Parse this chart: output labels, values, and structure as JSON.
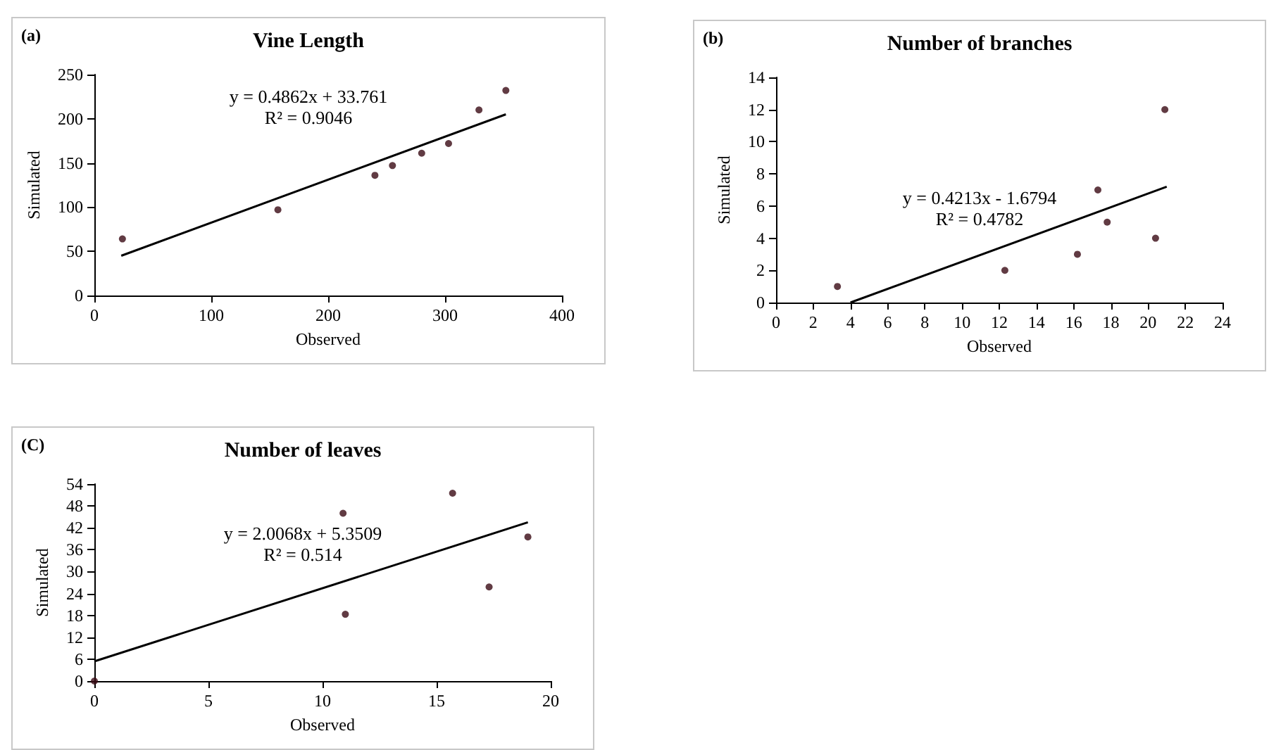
{
  "chart_data": [
    {
      "type": "scatter",
      "title": "Vine Length",
      "xlabel": "Observed",
      "ylabel": "Simulated",
      "annotations": [
        "(a)",
        "y = 0.4862x + 33.761",
        "R² = 0.9046"
      ],
      "xlim": [
        0,
        400
      ],
      "xticks": [
        0,
        100,
        200,
        300,
        400
      ],
      "ylim": [
        0,
        250
      ],
      "yticks": [
        0,
        50,
        100,
        150,
        200,
        250
      ],
      "grid": false,
      "series": [
        {
          "marker": "circle",
          "color": "#3a0a14",
          "x": [
            24,
            157,
            240,
            255,
            280,
            303,
            329,
            352
          ],
          "values": [
            64,
            97,
            136,
            147,
            161,
            172,
            210,
            232
          ]
        },
        {
          "type": "line",
          "marker": "none",
          "color": "#000000",
          "x": [
            23,
            352
          ],
          "values": [
            45,
            205
          ]
        }
      ]
    },
    {
      "type": "scatter",
      "title": "Number of branches",
      "xlabel": "Observed",
      "ylabel": "Simulated",
      "annotations": [
        "(b)",
        "y = 0.4213x - 1.6794",
        "R² = 0.4782"
      ],
      "xlim": [
        0,
        24
      ],
      "xticks": [
        0,
        2,
        4,
        6,
        8,
        10,
        12,
        14,
        16,
        18,
        20,
        22,
        24
      ],
      "ylim": [
        0,
        14
      ],
      "yticks": [
        0,
        2,
        4,
        6,
        8,
        10,
        12,
        14
      ],
      "grid": false,
      "series": [
        {
          "marker": "circle",
          "color": "#3a0a14",
          "x": [
            3.3,
            12.3,
            16.2,
            17.3,
            17.8,
            20.4,
            20.9
          ],
          "values": [
            1,
            2,
            3,
            7,
            5,
            4,
            12
          ]
        },
        {
          "type": "line",
          "marker": "none",
          "color": "#000000",
          "x": [
            4,
            21
          ],
          "values": [
            0,
            7.2
          ]
        }
      ]
    },
    {
      "type": "scatter",
      "title": "Number of leaves",
      "xlabel": "Observed",
      "ylabel": "Simulated",
      "annotations": [
        "(C)",
        "y = 2.0068x + 5.3509",
        "R² = 0.514"
      ],
      "xlim": [
        0,
        20
      ],
      "xticks": [
        0,
        5,
        10,
        15,
        20
      ],
      "ylim": [
        0,
        54
      ],
      "yticks": [
        0,
        6,
        12,
        18,
        24,
        30,
        36,
        42,
        48,
        54
      ],
      "grid": false,
      "series": [
        {
          "marker": "circle",
          "color": "#3a0a14",
          "x": [
            0,
            10.9,
            11.0,
            15.7,
            17.3,
            19.0
          ],
          "values": [
            0,
            46,
            18.3,
            51.5,
            25.8,
            39.5
          ]
        },
        {
          "type": "line",
          "marker": "none",
          "color": "#000000",
          "x": [
            0,
            19
          ],
          "values": [
            5.4,
            43.5
          ]
        }
      ]
    }
  ]
}
